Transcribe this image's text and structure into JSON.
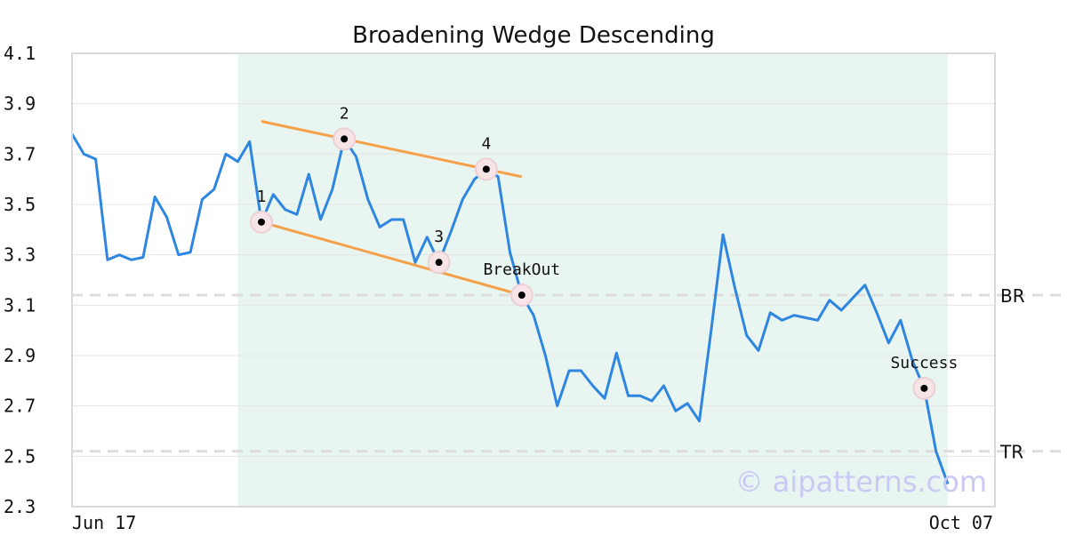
{
  "chart_data": {
    "type": "line",
    "title": "Broadening Wedge Descending",
    "watermark": "© aipatterns.com",
    "ylim": [
      2.3,
      4.1
    ],
    "yticks": [
      "4.1",
      "3.9",
      "3.7",
      "3.5",
      "3.3",
      "3.1",
      "2.9",
      "2.7",
      "2.5",
      "2.3"
    ],
    "xticks": [
      "Jun 17",
      "Oct 07"
    ],
    "grid": true,
    "line_color": "#2f86e0",
    "trend_color": "#f5a04a",
    "highlight_color": "#e9f5f0",
    "series": [
      {
        "values": [
          3.78,
          3.7,
          3.68,
          3.28,
          3.3,
          3.28,
          3.29,
          3.53,
          3.45,
          3.3,
          3.31,
          3.52,
          3.56,
          3.7,
          3.67,
          3.75,
          3.43,
          3.54,
          3.48,
          3.46,
          3.62,
          3.44,
          3.56,
          3.76,
          3.69,
          3.52,
          3.41,
          3.44,
          3.44,
          3.27,
          3.37,
          3.27,
          3.39,
          3.52,
          3.6,
          3.64,
          3.61,
          3.31,
          3.14,
          3.06,
          2.9,
          2.7,
          2.84,
          2.84,
          2.78,
          2.73,
          2.91,
          2.74,
          2.74,
          2.72,
          2.78,
          2.68,
          2.71,
          2.64,
          3.0,
          3.38,
          3.17,
          2.98,
          2.92,
          3.07,
          3.04,
          3.06,
          3.05,
          3.04,
          3.12,
          3.08,
          3.13,
          3.18,
          3.07,
          2.95,
          3.04,
          2.88,
          2.77,
          2.52,
          2.39
        ]
      }
    ],
    "highlight_range": [
      14,
      75
    ],
    "trendlines": [
      {
        "from": [
          16,
          3.43
        ],
        "to": [
          38,
          3.14
        ]
      },
      {
        "from": [
          16,
          3.83
        ],
        "to": [
          38,
          3.61
        ]
      }
    ],
    "points": [
      {
        "label": "1",
        "index": 16,
        "value": 3.43
      },
      {
        "label": "2",
        "index": 23,
        "value": 3.76
      },
      {
        "label": "3",
        "index": 31,
        "value": 3.27
      },
      {
        "label": "4",
        "index": 35,
        "value": 3.64
      },
      {
        "label": "BreakOut",
        "index": 38,
        "value": 3.14
      },
      {
        "label": "Success",
        "index": 72,
        "value": 2.77
      }
    ],
    "reference_lines": [
      {
        "label": "BR",
        "value": 3.14
      },
      {
        "label": "TR",
        "value": 2.52
      }
    ]
  }
}
